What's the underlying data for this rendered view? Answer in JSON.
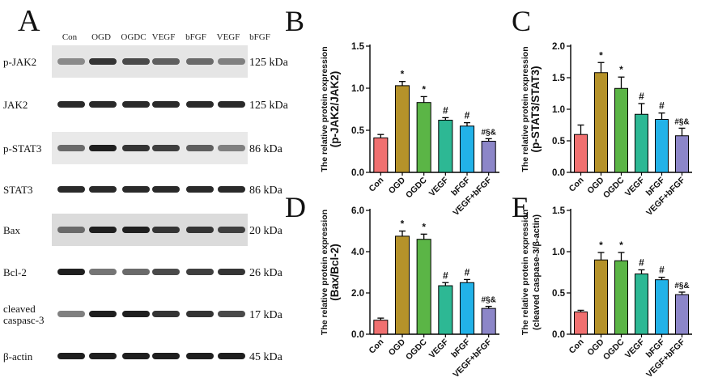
{
  "panel_a": {
    "letter": "A",
    "lane_labels": [
      "Con",
      "OGD",
      "OGDC",
      "VEGF",
      "bFGF",
      "VEGF",
      "bFGF"
    ],
    "blots": [
      {
        "protein": "p-JAK2",
        "size": "125 kDa",
        "intensity": [
          0.45,
          0.85,
          0.75,
          0.65,
          0.6,
          0.5
        ],
        "bg": 0.22
      },
      {
        "protein": "JAK2",
        "size": "125 kDa",
        "intensity": [
          0.9,
          0.9,
          0.9,
          0.9,
          0.9,
          0.9
        ],
        "bg": 0.0
      },
      {
        "protein": "p-STAT3",
        "size": "86 kDa",
        "intensity": [
          0.6,
          0.95,
          0.85,
          0.8,
          0.65,
          0.5
        ],
        "bg": 0.18
      },
      {
        "protein": "STAT3",
        "size": "86 kDa",
        "intensity": [
          0.9,
          0.9,
          0.9,
          0.9,
          0.9,
          0.9
        ],
        "bg": 0.0
      },
      {
        "protein": "Bax",
        "size": "20 kDa",
        "intensity": [
          0.6,
          0.95,
          0.95,
          0.85,
          0.85,
          0.8
        ],
        "bg": 0.3
      },
      {
        "protein": "Bcl-2",
        "size": "26 kDa",
        "intensity": [
          0.95,
          0.55,
          0.6,
          0.75,
          0.8,
          0.85
        ],
        "bg": 0.0
      },
      {
        "protein": "cleaved\ncaspasc-3",
        "size": "17 kDa",
        "intensity": [
          0.5,
          0.95,
          0.95,
          0.85,
          0.85,
          0.75
        ],
        "bg": 0.0
      },
      {
        "protein": "β-actin",
        "size": "45 kDa",
        "intensity": [
          0.95,
          0.95,
          0.95,
          0.95,
          0.95,
          0.95
        ],
        "bg": 0.0
      }
    ]
  },
  "chart_data": [
    {
      "letter": "B",
      "type": "bar",
      "ylabel_top": "The relative protein expression",
      "ylabel_bottom": "(p-JAK2/JAK2)",
      "categories": [
        "Con",
        "OGD",
        "OGDC",
        "VEGF",
        "bFGF",
        "VEGF+bFGF"
      ],
      "values": [
        0.41,
        1.03,
        0.83,
        0.62,
        0.55,
        0.37
      ],
      "errors": [
        0.04,
        0.05,
        0.07,
        0.03,
        0.04,
        0.03
      ],
      "annotations": [
        "",
        "*",
        "*",
        "#",
        "#",
        "#§&"
      ],
      "ylim": [
        0,
        1.5
      ],
      "yticks": [
        "0.0",
        "0.5",
        "1.0",
        "1.5"
      ]
    },
    {
      "letter": "C",
      "type": "bar",
      "ylabel_top": "The relative protein expression",
      "ylabel_bottom": "(p-STAT3/STAT3)",
      "categories": [
        "Con",
        "OGD",
        "OGDC",
        "VEGF",
        "bFGF",
        "VEGF+bFGF"
      ],
      "values": [
        0.6,
        1.58,
        1.33,
        0.92,
        0.84,
        0.58
      ],
      "errors": [
        0.15,
        0.16,
        0.18,
        0.17,
        0.1,
        0.12
      ],
      "annotations": [
        "",
        "*",
        "*",
        "#",
        "#",
        "#§&"
      ],
      "ylim": [
        0,
        2.0
      ],
      "yticks": [
        "0.0",
        "0.5",
        "1.0",
        "1.5",
        "2.0"
      ]
    },
    {
      "letter": "D",
      "type": "bar",
      "ylabel_top": "The relative protein expression",
      "ylabel_bottom": "(Bax/Bcl-2)",
      "categories": [
        "Con",
        "OGD",
        "OGDC",
        "VEGF",
        "bFGF",
        "VEGF+bFGF"
      ],
      "values": [
        0.68,
        4.75,
        4.6,
        2.35,
        2.5,
        1.25
      ],
      "errors": [
        0.1,
        0.25,
        0.25,
        0.15,
        0.15,
        0.1
      ],
      "annotations": [
        "",
        "*",
        "*",
        "#",
        "#",
        "#§&"
      ],
      "ylim": [
        0,
        6.0
      ],
      "yticks": [
        "0.0",
        "2.0",
        "4.0",
        "6.0"
      ]
    },
    {
      "letter": "E",
      "type": "bar",
      "ylabel_top": "The relative protein expression",
      "ylabel_bottom": "(cleaved caspase-3/β-actin)",
      "categories": [
        "Con",
        "OGD",
        "OGDC",
        "VEGF",
        "bFGF",
        "VEGF+bFGF"
      ],
      "values": [
        0.27,
        0.9,
        0.89,
        0.73,
        0.66,
        0.48
      ],
      "errors": [
        0.02,
        0.09,
        0.1,
        0.05,
        0.03,
        0.03
      ],
      "annotations": [
        "",
        "*",
        "*",
        "#",
        "#",
        "#§&"
      ],
      "ylim": [
        0,
        1.5
      ],
      "yticks": [
        "0.0",
        "0.5",
        "1.0",
        "1.5"
      ]
    }
  ],
  "colors": [
    "#f07070",
    "#b5922a",
    "#5bb546",
    "#2db894",
    "#22b2e8",
    "#8c86c8"
  ]
}
